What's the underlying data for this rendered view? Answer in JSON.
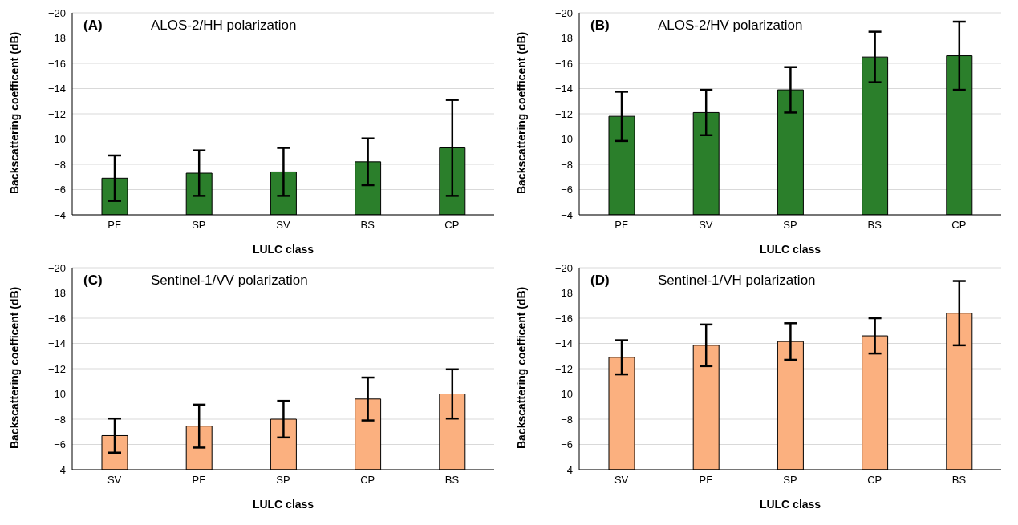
{
  "chart_data": [
    {
      "type": "bar",
      "title": "(A)",
      "subtitle": "ALOS-2/HH polarization",
      "xlabel": "LULC class",
      "ylabel": "Backscattering coefficent (dB)",
      "categories": [
        "PF",
        "SP",
        "SV",
        "BS",
        "CP"
      ],
      "values": [
        -6.9,
        -7.3,
        -7.4,
        -8.2,
        -9.3
      ],
      "errors": [
        1.8,
        1.8,
        1.9,
        1.85,
        3.8
      ],
      "color": "#2b7f2b",
      "ylim": [
        -4,
        -20
      ],
      "yticks": [
        -4,
        -6,
        -8,
        -10,
        -12,
        -14,
        -16,
        -18,
        -20
      ],
      "grid": "y"
    },
    {
      "type": "bar",
      "title": "(B)",
      "subtitle": "ALOS-2/HV polarization",
      "xlabel": "LULC class",
      "ylabel": "Backscattering coefficent (dB)",
      "categories": [
        "PF",
        "SV",
        "SP",
        "BS",
        "CP"
      ],
      "values": [
        -11.8,
        -12.1,
        -13.9,
        -16.5,
        -16.6
      ],
      "errors": [
        1.95,
        1.8,
        1.8,
        2.0,
        2.7
      ],
      "color": "#2b7f2b",
      "ylim": [
        -4,
        -20
      ],
      "yticks": [
        -4,
        -6,
        -8,
        -10,
        -12,
        -14,
        -16,
        -18,
        -20
      ],
      "grid": "y"
    },
    {
      "type": "bar",
      "title": "(C)",
      "subtitle": "Sentinel-1/VV polarization",
      "xlabel": "LULC class",
      "ylabel": "Backscattering coefficent (dB)",
      "categories": [
        "SV",
        "PF",
        "SP",
        "CP",
        "BS"
      ],
      "values": [
        -6.7,
        -7.45,
        -8.0,
        -9.6,
        -10.0
      ],
      "errors": [
        1.35,
        1.7,
        1.45,
        1.7,
        1.95
      ],
      "color": "#fbb07f",
      "ylim": [
        -4,
        -20
      ],
      "yticks": [
        -4,
        -6,
        -8,
        -10,
        -12,
        -14,
        -16,
        -18,
        -20
      ],
      "grid": "y"
    },
    {
      "type": "bar",
      "title": "(D)",
      "subtitle": "Sentinel-1/VH polarization",
      "xlabel": "LULC class",
      "ylabel": "Backscattering coefficent (dB)",
      "categories": [
        "SV",
        "PF",
        "SP",
        "CP",
        "BS"
      ],
      "values": [
        -12.9,
        -13.85,
        -14.15,
        -14.6,
        -16.4
      ],
      "errors": [
        1.35,
        1.65,
        1.45,
        1.4,
        2.55
      ],
      "color": "#fbb07f",
      "ylim": [
        -4,
        -20
      ],
      "yticks": [
        -4,
        -6,
        -8,
        -10,
        -12,
        -14,
        -16,
        -18,
        -20
      ],
      "grid": "y"
    }
  ]
}
